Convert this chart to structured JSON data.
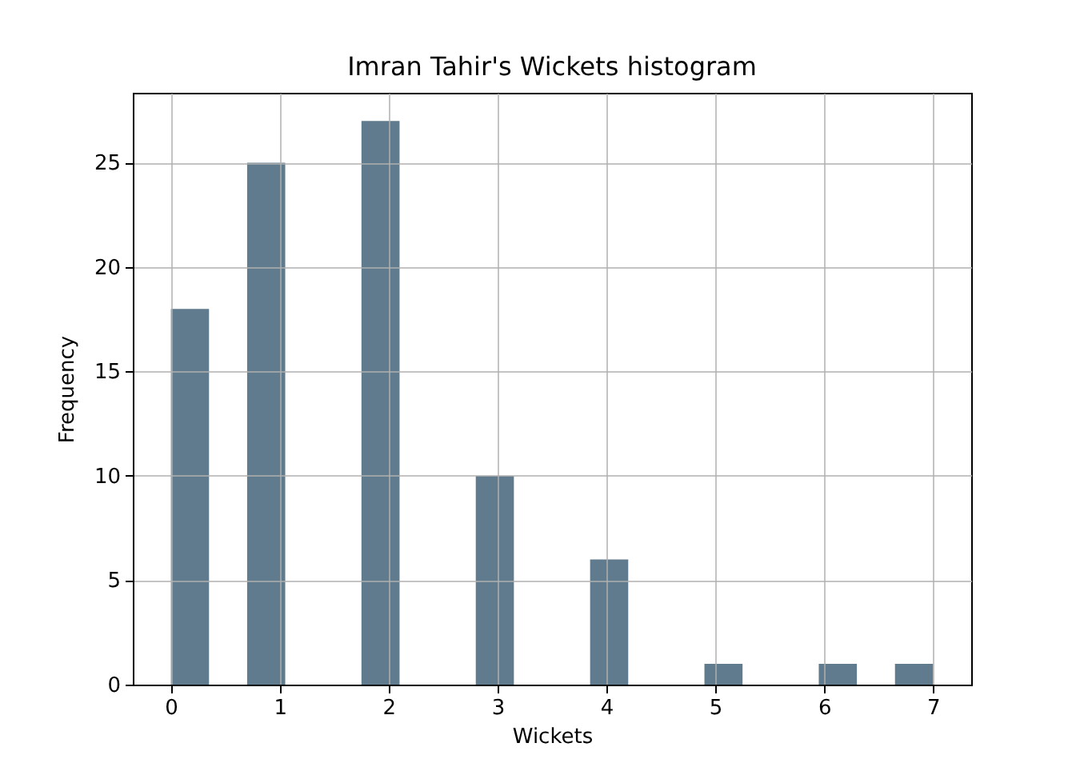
{
  "chart_data": {
    "type": "histogram",
    "title": "Imran Tahir's Wickets histogram",
    "xlabel": "Wickets",
    "ylabel": "Frequency",
    "bins": [
      0,
      0.35,
      0.7,
      1.05,
      1.4,
      1.75,
      2.1,
      2.45,
      2.8,
      3.15,
      3.5,
      3.85,
      4.2,
      4.55,
      4.9,
      5.25,
      5.6,
      5.95,
      6.3,
      6.65,
      7
    ],
    "values": [
      18,
      0,
      25,
      0,
      0,
      27,
      0,
      0,
      10,
      0,
      0,
      6,
      0,
      0,
      1,
      0,
      0,
      1,
      0,
      1
    ],
    "color": "#607b8d",
    "xlim": [
      -0.35,
      7.35
    ],
    "xticks": [
      0,
      1,
      2,
      3,
      4,
      5,
      6,
      7
    ],
    "ylim": [
      0,
      28.35
    ],
    "yticks": [
      0,
      5,
      10,
      15,
      20,
      25
    ],
    "grid": true
  }
}
